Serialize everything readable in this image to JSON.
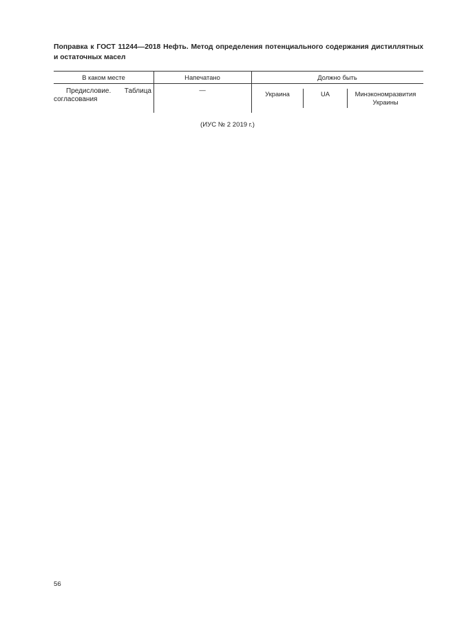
{
  "title": "Поправка к ГОСТ 11244—2018 Нефть. Метод определения потенциального содержания дистиллятных и остаточных масел",
  "table": {
    "headers": [
      "В каком месте",
      "Напечатано",
      "Должно быть"
    ],
    "row": {
      "place": "Предисловие. Таблица согласования",
      "printed": "—",
      "should_be": [
        "Украина",
        "UA",
        "Минэкономразвития Украины"
      ]
    }
  },
  "source": "(ИУС № 2  2019 г.)",
  "page_number": "56"
}
